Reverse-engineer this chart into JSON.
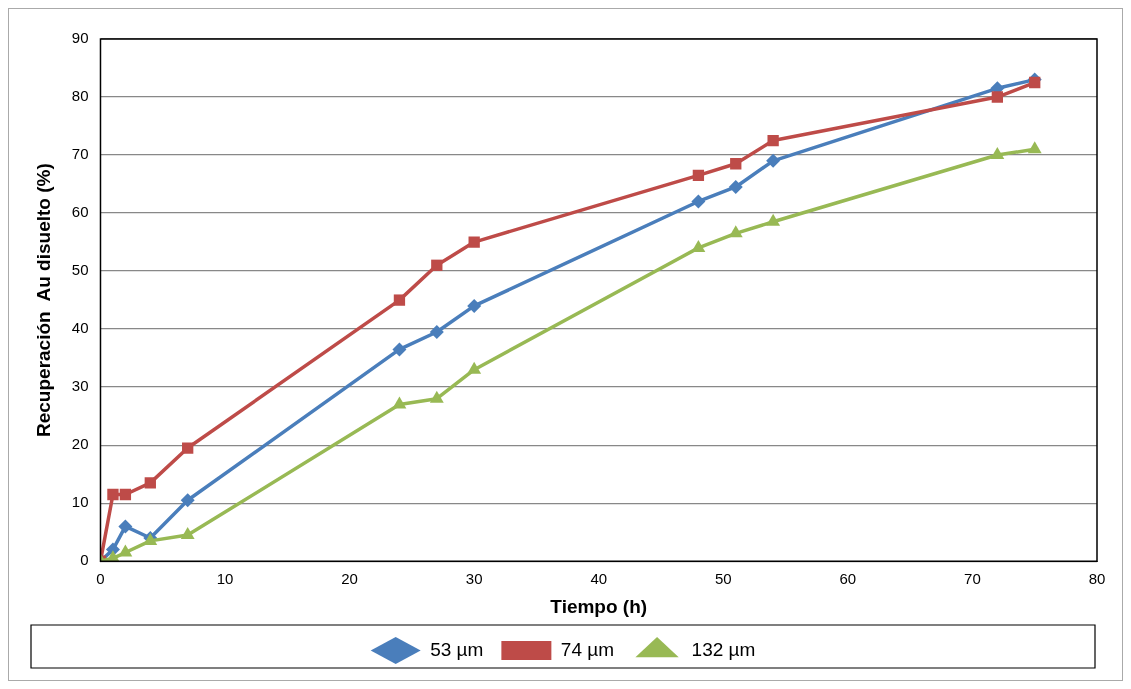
{
  "chart_data": {
    "type": "line",
    "xlabel": "Tiempo (h)",
    "ylabel": "Recuperación  Au disuelto (%)",
    "x": [
      0,
      1,
      2,
      4,
      7,
      24,
      27,
      30,
      48,
      51,
      54,
      72,
      75
    ],
    "series": [
      {
        "name": "53 µm",
        "color": "#4a7ebb",
        "marker": "diamond",
        "values": [
          0,
          2,
          6,
          4,
          10.5,
          36.5,
          39.5,
          44,
          62,
          64.5,
          69,
          81.5,
          83
        ]
      },
      {
        "name": "74 µm",
        "color": "#be4b48",
        "marker": "square",
        "values": [
          0,
          11.5,
          11.5,
          13.5,
          19.5,
          45,
          51,
          55,
          66.5,
          68.5,
          72.5,
          80,
          82.5
        ]
      },
      {
        "name": "132 µm",
        "color": "#98b954",
        "marker": "triangle",
        "values": [
          0,
          0.5,
          1.5,
          3.5,
          4.5,
          27,
          28,
          33,
          54,
          56.5,
          58.5,
          70,
          71
        ]
      }
    ],
    "xlim": [
      0,
      80
    ],
    "xticks": [
      0,
      10,
      20,
      30,
      40,
      50,
      60,
      70,
      80
    ],
    "ylim": [
      0,
      90
    ],
    "yticks": [
      0,
      10,
      20,
      30,
      40,
      50,
      60,
      70,
      80,
      90
    ],
    "grid": "y",
    "legend": "bottom",
    "line_style": "solid"
  }
}
